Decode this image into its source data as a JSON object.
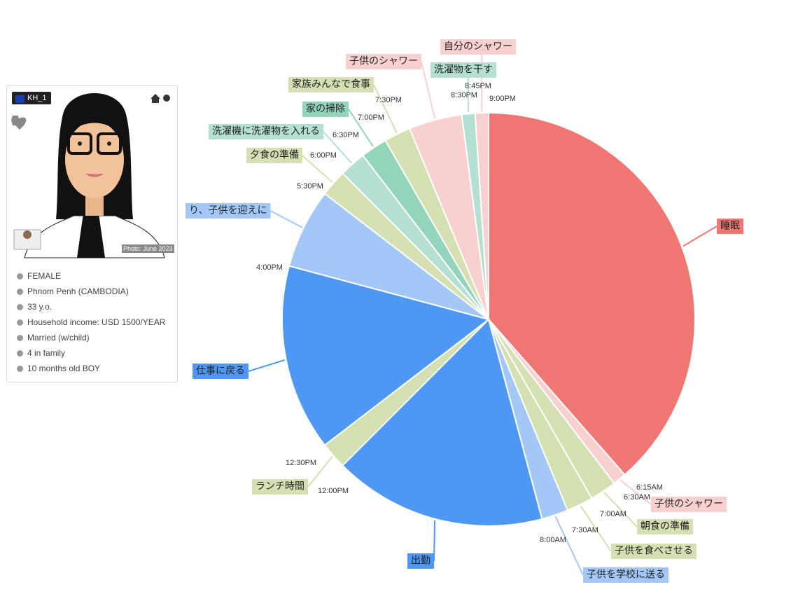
{
  "profile": {
    "id": "KH_1",
    "photo_caption": "Photo: June 2023",
    "details": [
      "FEMALE",
      "Phnom Penh (CAMBODIA)",
      "33 y.o.",
      "Household income: USD 1500/YEAR",
      "Married (w/child)",
      "4 in family",
      "10 months old BOY"
    ]
  },
  "chart_data": {
    "type": "pie",
    "categories": [
      "睡眠",
      "子供のシャワー",
      "朝食の準備",
      "子供を食べさせる",
      "子供を学校に送る",
      "出勤",
      "ランチ時間",
      "仕事に戻る",
      "り、子供を迎えに",
      "夕食の準備",
      "洗濯機に洗濯物を入れる",
      "家の掃除",
      "家族みんなで食事",
      "子供のシャワー",
      "洗濯物を干す",
      "自分のシャワー"
    ],
    "values": [
      9.25,
      0.25,
      0.5,
      0.5,
      0.5,
      4,
      0.5,
      3.5,
      1.5,
      0.5,
      0.5,
      0.5,
      0.5,
      1,
      0.25,
      0.25
    ],
    "times": [
      "9:00PM",
      "6:15AM",
      "6:30AM",
      "7:00AM",
      "7:30AM",
      "8:00AM",
      "12:00PM",
      "12:30PM",
      "4:00PM",
      "5:30PM",
      "6:00PM",
      "6:30PM",
      "7:00PM",
      "7:30PM",
      "8:30PM",
      "8:45PM"
    ],
    "colors": [
      "#ef7672",
      "#f9d0d0",
      "#d4e0b2",
      "#d4e0b2",
      "#a3c8f7",
      "#4e98f3",
      "#d4e0b2",
      "#4e98f3",
      "#a3c8f7",
      "#d4e0b2",
      "#b3e0d3",
      "#93d5bb",
      "#d4e0b2",
      "#f9d0d0",
      "#b3e0d3",
      "#f9d0d0"
    ]
  }
}
